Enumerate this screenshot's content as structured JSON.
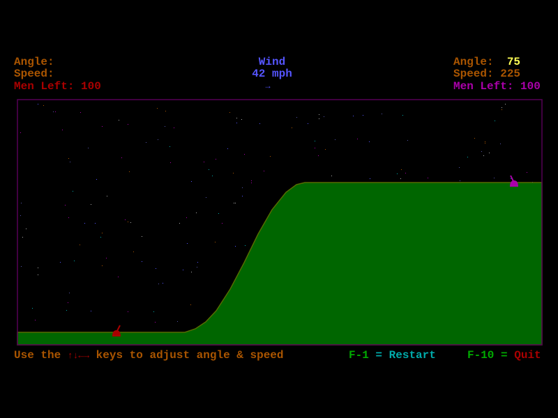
{
  "player1": {
    "angle_label": "Angle:",
    "angle_value": "",
    "speed_label": "Speed:",
    "speed_value": "",
    "men_left_label": "Men Left:",
    "men_left_value": "100",
    "color": "#aa0000"
  },
  "player2": {
    "angle_label": "Angle:",
    "angle_value": "75",
    "speed_label": "Speed:",
    "speed_value": "225",
    "men_left_label": "Men Left:",
    "men_left_value": "100",
    "color": "#aa00aa"
  },
  "wind": {
    "title": "Wind",
    "speed": "42 mph",
    "direction_arrow": "→",
    "color": "#5555ff"
  },
  "footer": {
    "hint_prefix": "Use the",
    "hint_keys": "↑↓←→",
    "hint_suffix": "keys to adjust angle & speed",
    "restart_key": "F-1",
    "restart_eq": "=",
    "restart_label": "Restart",
    "quit_key": "F-10",
    "quit_eq": "=",
    "quit_label": "Quit"
  },
  "colors": {
    "label": "#aa5500",
    "highlight": "#ffff55",
    "terrain": "#006600",
    "terrain_edge": "#556b00",
    "border": "#550055",
    "key": "#00aa00",
    "restart": "#00aaaa",
    "quit": "#aa0000"
  },
  "icons": {
    "cannon_left": "red-cannon-icon",
    "cannon_right": "magenta-cannon-icon"
  }
}
